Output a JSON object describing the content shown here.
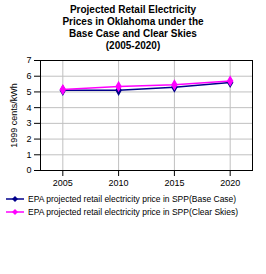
{
  "chart_data": {
    "type": "line",
    "title": "Projected Retail Electricity\nPrices in Oklahoma under the\nBase Case and Clear Skies\n(2005-2020)",
    "ylabel": "1999 cents/kWh",
    "x": [
      2005,
      2010,
      2015,
      2020
    ],
    "series": [
      {
        "name": "EPA projected retail electricity price in SPP(Base Case)",
        "color": "#00008B",
        "marker": "diamond",
        "values": [
          5.1,
          5.1,
          5.3,
          5.6
        ]
      },
      {
        "name": "EPA projected retail electricity price in SPP(Clear Skies)",
        "color": "#FF00FF",
        "marker": "diamond",
        "values": [
          5.15,
          5.35,
          5.45,
          5.7
        ]
      }
    ],
    "xlim": [
      2003,
      2022
    ],
    "xticks": [
      2005,
      2010,
      2015,
      2020
    ],
    "ylim": [
      0,
      7
    ],
    "yticks": [
      0,
      1,
      2,
      3,
      4,
      5,
      6,
      7
    ],
    "grid": true,
    "legend": "bottom"
  }
}
